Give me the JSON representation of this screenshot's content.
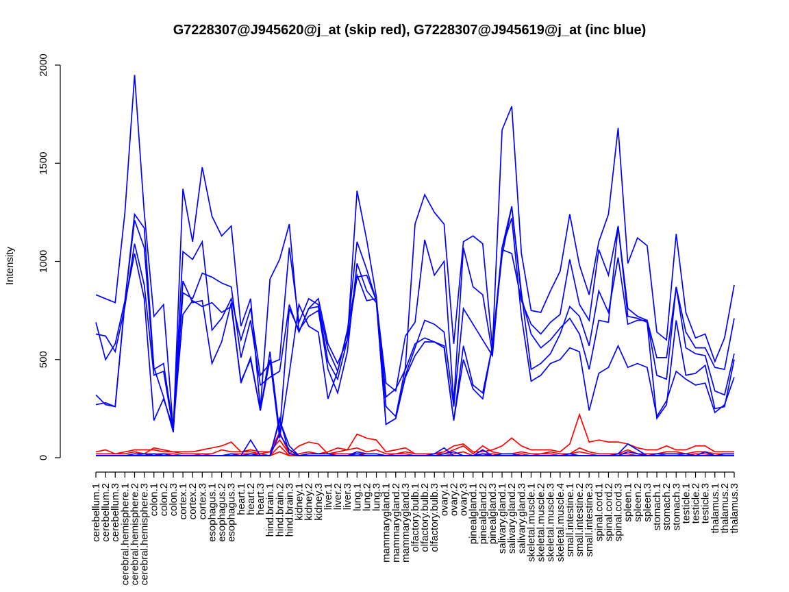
{
  "chart_data": {
    "type": "line",
    "title": "G7228307@J945620@j_at (skip red), G7228307@J945619@j_at (inc blue)",
    "xlabel": "",
    "ylabel": "Intensity",
    "ylim": [
      0,
      2000
    ],
    "yticks": [
      0,
      500,
      1000,
      1500,
      2000
    ],
    "grid": false,
    "legend": "none",
    "colors": {
      "skip": "#ff0000",
      "inc": "#0000ff",
      "axis": "#000000"
    },
    "categories": [
      "cerebellum.1",
      "cerebellum.2",
      "cerebellum.3",
      "cerebral.hemisphere.1",
      "cerebral.hemisphere.2",
      "cerebral.hemisphere.3",
      "colon.1",
      "colon.2",
      "colon.3",
      "cortex.1",
      "cortex.2",
      "cortex.3",
      "esophagus.1",
      "esophagus.2",
      "esophagus.3",
      "heart.1",
      "heart.2",
      "heart.3",
      "hind.brain.1",
      "hind.brain.2",
      "hind.brain.3",
      "kidney.1",
      "kidney.2",
      "kidney.3",
      "liver.1",
      "liver.2",
      "liver.3",
      "lung.1",
      "lung.2",
      "lung.3",
      "mammarygland.1",
      "mammarygland.2",
      "mammarygland.3",
      "olfactory.bulb.1",
      "olfactory.bulb.2",
      "olfactory.bulb.3",
      "ovary.1",
      "ovary.2",
      "ovary.3",
      "pinealgland.1",
      "pinealgland.2",
      "pinealgland.3",
      "salivary.gland.1",
      "salivary.gland.2",
      "salivary.gland.3",
      "skeletal.muscle.1",
      "skeletal.muscle.2",
      "skeletal.muscle.3",
      "skeletal.muscle.4",
      "small.intestine.1",
      "small.intestine.2",
      "small.intestine.3",
      "spinal.cord.1",
      "spinal.cord.2",
      "spinal.cord.3",
      "spleen.1",
      "spleen.2",
      "spleen.3",
      "stomach.1",
      "stomach.2",
      "stomach.3",
      "testicle.1",
      "testicle.2",
      "testicle.3",
      "thalamus.1",
      "thalamus.2",
      "thalamus.3"
    ],
    "series": [
      {
        "group": "inc",
        "color": "#0000ff",
        "values": [
          830,
          810,
          790,
          1250,
          1950,
          1250,
          720,
          780,
          140,
          1370,
          1100,
          1480,
          1230,
          1130,
          1180,
          670,
          810,
          250,
          910,
          1010,
          1190,
          640,
          760,
          810,
          580,
          480,
          600,
          1360,
          1110,
          820,
          260,
          210,
          460,
          1190,
          1340,
          1250,
          1190,
          580,
          1100,
          1130,
          1090,
          560,
          1670,
          1790,
          1040,
          750,
          740,
          850,
          950,
          1240,
          980,
          830,
          1100,
          1240,
          1680,
          990,
          1120,
          1080,
          640,
          600,
          1140,
          740,
          610,
          630,
          490,
          610,
          880
        ]
      },
      {
        "group": "inc",
        "color": "#0000ff",
        "values": [
          690,
          500,
          580,
          800,
          1210,
          1070,
          450,
          480,
          150,
          1050,
          1010,
          1100,
          650,
          710,
          810,
          600,
          760,
          420,
          480,
          500,
          1070,
          690,
          810,
          780,
          550,
          440,
          640,
          1100,
          960,
          800,
          380,
          340,
          620,
          690,
          1110,
          930,
          1000,
          280,
          1070,
          870,
          830,
          530,
          1060,
          1040,
          800,
          680,
          630,
          690,
          730,
          1010,
          780,
          700,
          1060,
          930,
          1180,
          760,
          720,
          700,
          510,
          510,
          870,
          640,
          560,
          560,
          460,
          450,
          710
        ]
      },
      {
        "group": "inc",
        "color": "#0000ff",
        "values": [
          630,
          620,
          540,
          770,
          1090,
          880,
          420,
          440,
          140,
          840,
          810,
          940,
          920,
          890,
          870,
          510,
          700,
          370,
          410,
          440,
          780,
          640,
          760,
          770,
          490,
          400,
          600,
          920,
          930,
          800,
          170,
          200,
          420,
          560,
          700,
          680,
          640,
          260,
          760,
          680,
          600,
          520,
          1070,
          1280,
          840,
          450,
          480,
          530,
          630,
          770,
          720,
          570,
          850,
          740,
          1020,
          680,
          700,
          700,
          420,
          400,
          870,
          560,
          530,
          520,
          340,
          320,
          530
        ]
      },
      {
        "group": "inc",
        "color": "#0000ff",
        "values": [
          320,
          270,
          260,
          790,
          1040,
          810,
          190,
          300,
          150,
          730,
          800,
          770,
          790,
          740,
          770,
          390,
          500,
          240,
          540,
          130,
          760,
          650,
          720,
          750,
          450,
          330,
          540,
          990,
          850,
          790,
          170,
          200,
          410,
          520,
          590,
          590,
          570,
          190,
          570,
          370,
          330,
          570,
          1030,
          1280,
          820,
          630,
          560,
          600,
          660,
          710,
          630,
          450,
          700,
          690,
          1180,
          720,
          710,
          690,
          200,
          270,
          700,
          420,
          430,
          470,
          250,
          260,
          500
        ]
      },
      {
        "group": "inc",
        "color": "#0000ff",
        "values": [
          270,
          280,
          260,
          800,
          1240,
          1170,
          460,
          310,
          130,
          900,
          790,
          800,
          480,
          590,
          790,
          380,
          510,
          240,
          500,
          100,
          430,
          780,
          670,
          640,
          300,
          440,
          650,
          930,
          800,
          810,
          310,
          350,
          450,
          580,
          610,
          590,
          560,
          190,
          500,
          350,
          300,
          570,
          1070,
          1220,
          720,
          390,
          420,
          480,
          500,
          560,
          540,
          240,
          430,
          460,
          570,
          460,
          480,
          460,
          210,
          290,
          440,
          400,
          370,
          380,
          230,
          270,
          410
        ]
      },
      {
        "group": "inc",
        "color": "#0000ff",
        "values": [
          10,
          10,
          10,
          10,
          20,
          20,
          10,
          20,
          10,
          10,
          10,
          10,
          10,
          10,
          20,
          10,
          90,
          10,
          10,
          190,
          60,
          10,
          20,
          20,
          20,
          10,
          10,
          30,
          20,
          20,
          10,
          10,
          10,
          10,
          10,
          20,
          50,
          10,
          10,
          10,
          40,
          10,
          20,
          20,
          10,
          10,
          10,
          10,
          10,
          20,
          10,
          10,
          10,
          10,
          20,
          70,
          40,
          10,
          20,
          20,
          20,
          20,
          10,
          30,
          10,
          20,
          20
        ]
      },
      {
        "group": "inc",
        "color": "#0000ff",
        "values": [
          10,
          10,
          10,
          10,
          10,
          10,
          10,
          10,
          10,
          10,
          10,
          10,
          10,
          10,
          10,
          10,
          20,
          10,
          10,
          120,
          40,
          10,
          10,
          10,
          10,
          10,
          10,
          20,
          10,
          10,
          10,
          10,
          10,
          10,
          10,
          10,
          20,
          30,
          10,
          10,
          20,
          10,
          10,
          10,
          10,
          10,
          10,
          10,
          10,
          10,
          10,
          10,
          10,
          10,
          10,
          30,
          20,
          10,
          10,
          10,
          10,
          10,
          10,
          10,
          10,
          10,
          10
        ]
      },
      {
        "group": "inc",
        "color": "#0000ff",
        "values": [
          10,
          10,
          10,
          10,
          10,
          10,
          20,
          10,
          10,
          10,
          10,
          10,
          10,
          10,
          10,
          10,
          10,
          10,
          10,
          200,
          20,
          10,
          10,
          10,
          10,
          10,
          10,
          10,
          10,
          10,
          10,
          10,
          10,
          10,
          10,
          10,
          10,
          10,
          10,
          10,
          10,
          10,
          10,
          10,
          10,
          10,
          10,
          10,
          10,
          10,
          10,
          10,
          10,
          10,
          10,
          10,
          10,
          10,
          10,
          10,
          10,
          10,
          10,
          10,
          10,
          10,
          10
        ]
      },
      {
        "group": "skip",
        "color": "#ff0000",
        "values": [
          30,
          40,
          20,
          30,
          40,
          40,
          40,
          30,
          30,
          30,
          30,
          40,
          50,
          60,
          80,
          30,
          40,
          30,
          30,
          130,
          20,
          60,
          80,
          70,
          20,
          30,
          40,
          120,
          100,
          90,
          30,
          40,
          50,
          20,
          20,
          20,
          30,
          60,
          70,
          30,
          30,
          40,
          60,
          100,
          60,
          40,
          40,
          40,
          30,
          70,
          220,
          80,
          90,
          80,
          80,
          70,
          50,
          40,
          40,
          60,
          40,
          40,
          60,
          60,
          30,
          30,
          30
        ]
      },
      {
        "group": "skip",
        "color": "#ff0000",
        "values": [
          20,
          20,
          20,
          20,
          30,
          20,
          50,
          40,
          30,
          20,
          20,
          20,
          20,
          40,
          30,
          30,
          30,
          20,
          30,
          90,
          20,
          20,
          30,
          20,
          30,
          50,
          40,
          50,
          30,
          40,
          20,
          20,
          30,
          20,
          20,
          20,
          20,
          40,
          60,
          20,
          60,
          30,
          20,
          20,
          30,
          20,
          20,
          30,
          20,
          20,
          50,
          30,
          20,
          20,
          20,
          40,
          20,
          20,
          20,
          30,
          30,
          20,
          30,
          30,
          20,
          20,
          20
        ]
      },
      {
        "group": "skip",
        "color": "#ff0000",
        "values": [
          10,
          10,
          10,
          10,
          10,
          20,
          20,
          20,
          20,
          10,
          10,
          20,
          10,
          10,
          20,
          20,
          20,
          20,
          10,
          60,
          10,
          10,
          20,
          20,
          20,
          20,
          20,
          20,
          20,
          20,
          10,
          20,
          20,
          10,
          10,
          10,
          10,
          20,
          30,
          10,
          20,
          20,
          10,
          10,
          20,
          10,
          20,
          20,
          10,
          20,
          30,
          20,
          10,
          10,
          20,
          20,
          10,
          10,
          10,
          20,
          20,
          10,
          20,
          20,
          10,
          20,
          20
        ]
      },
      {
        "group": "skip",
        "color": "#ff0000",
        "values": [
          10,
          10,
          10,
          10,
          10,
          10,
          10,
          10,
          10,
          10,
          10,
          10,
          10,
          10,
          10,
          10,
          10,
          10,
          10,
          30,
          10,
          10,
          10,
          10,
          10,
          10,
          10,
          10,
          10,
          10,
          10,
          10,
          10,
          10,
          10,
          10,
          10,
          10,
          10,
          10,
          10,
          10,
          10,
          10,
          10,
          10,
          10,
          10,
          10,
          10,
          10,
          10,
          10,
          10,
          10,
          10,
          10,
          10,
          10,
          10,
          10,
          10,
          10,
          10,
          10,
          10,
          10
        ]
      }
    ]
  }
}
